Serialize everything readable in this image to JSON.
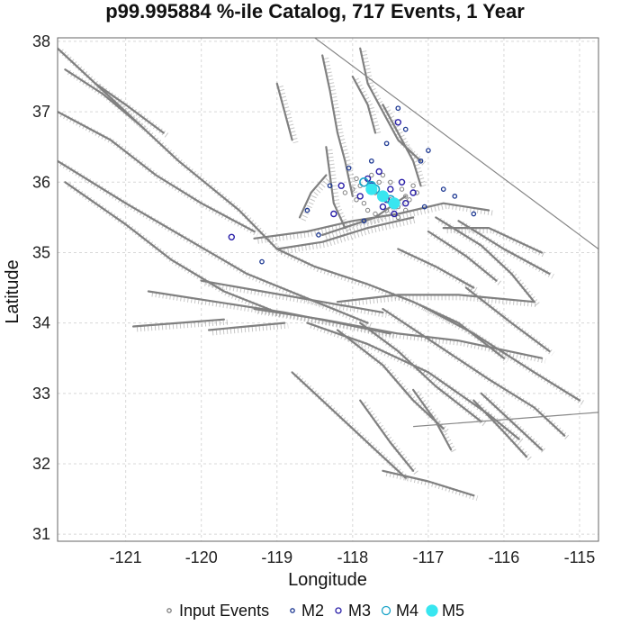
{
  "chart_data": {
    "type": "scatter",
    "title": "p99.995884 %-ile Catalog, 717 Events, 1 Year",
    "xlabel": "Longitude",
    "ylabel": "Latitude",
    "xlim": [
      -121.9,
      -114.75
    ],
    "ylim": [
      30.9,
      38.05
    ],
    "xticks": [
      -121,
      -120,
      -119,
      -118,
      -117,
      -116,
      -115
    ],
    "yticks": [
      31,
      32,
      33,
      34,
      35,
      36,
      37,
      38
    ],
    "grid": true,
    "legend_position": "bottom",
    "colors": {
      "faults": "#808080",
      "frame": "#555555",
      "grid": "#d8d8d8",
      "input_events": "#808080",
      "m2": "#1f3a93",
      "m3": "#2a1fa8",
      "m4": "#1aa3c8",
      "m5": "#38e6f0"
    },
    "legend": [
      {
        "label": "Input Events",
        "color": "#808080",
        "filled": false
      },
      {
        "label": "M2",
        "color": "#1f3a93",
        "filled": false
      },
      {
        "label": "M3",
        "color": "#2a1fa8",
        "filled": false
      },
      {
        "label": "M4",
        "color": "#1aa3c8",
        "filled": false
      },
      {
        "label": "M5",
        "color": "#38e6f0",
        "filled": true
      }
    ],
    "region_polygon": [
      [
        -118.5,
        38.05
      ],
      [
        -114.75,
        35.05
      ],
      [
        -114.75,
        32.73
      ],
      [
        -117.2,
        32.53
      ]
    ],
    "faults": [
      [
        [
          -121.9,
          37.9
        ],
        [
          -121.0,
          37.0
        ],
        [
          -120.3,
          36.3
        ],
        [
          -119.5,
          35.6
        ],
        [
          -119.0,
          35.05
        ],
        [
          -118.5,
          34.8
        ],
        [
          -117.8,
          34.55
        ],
        [
          -117.2,
          34.3
        ],
        [
          -116.6,
          34.0
        ],
        [
          -116.0,
          33.5
        ]
      ],
      [
        [
          -121.9,
          37.0
        ],
        [
          -121.2,
          36.6
        ],
        [
          -120.6,
          36.1
        ],
        [
          -120.0,
          35.7
        ],
        [
          -119.3,
          35.3
        ]
      ],
      [
        [
          -121.9,
          36.3
        ],
        [
          -121.0,
          35.7
        ],
        [
          -120.2,
          35.2
        ],
        [
          -119.4,
          34.7
        ],
        [
          -118.6,
          34.35
        ],
        [
          -117.8,
          34.0
        ]
      ],
      [
        [
          -121.8,
          36.0
        ],
        [
          -121.0,
          35.4
        ],
        [
          -120.4,
          34.9
        ],
        [
          -119.7,
          34.45
        ],
        [
          -119.0,
          34.15
        ]
      ],
      [
        [
          -120.7,
          34.45
        ],
        [
          -119.8,
          34.3
        ],
        [
          -118.9,
          34.15
        ],
        [
          -118.2,
          34.0
        ],
        [
          -117.5,
          33.85
        ]
      ],
      [
        [
          -120.0,
          34.6
        ],
        [
          -119.2,
          34.45
        ],
        [
          -118.4,
          34.3
        ],
        [
          -117.6,
          34.15
        ]
      ],
      [
        [
          -119.3,
          34.2
        ],
        [
          -118.4,
          34.05
        ],
        [
          -117.4,
          33.85
        ],
        [
          -116.6,
          33.75
        ],
        [
          -115.5,
          33.5
        ]
      ],
      [
        [
          -118.6,
          34.0
        ],
        [
          -117.8,
          33.7
        ],
        [
          -117.0,
          33.3
        ],
        [
          -116.2,
          32.7
        ],
        [
          -115.8,
          32.35
        ]
      ],
      [
        [
          -118.2,
          33.9
        ],
        [
          -117.6,
          33.4
        ],
        [
          -117.2,
          32.9
        ],
        [
          -116.8,
          32.5
        ]
      ],
      [
        [
          -117.9,
          34.0
        ],
        [
          -117.4,
          33.6
        ],
        [
          -116.9,
          33.1
        ],
        [
          -116.3,
          32.6
        ]
      ],
      [
        [
          -117.6,
          34.2
        ],
        [
          -116.9,
          33.7
        ],
        [
          -116.2,
          33.2
        ],
        [
          -115.6,
          32.8
        ],
        [
          -115.2,
          32.4
        ]
      ],
      [
        [
          -117.1,
          34.25
        ],
        [
          -116.4,
          33.85
        ],
        [
          -115.6,
          33.3
        ],
        [
          -115.0,
          32.9
        ]
      ],
      [
        [
          -116.5,
          34.5
        ],
        [
          -115.9,
          34.0
        ],
        [
          -115.4,
          33.6
        ]
      ],
      [
        [
          -119.3,
          35.2
        ],
        [
          -118.6,
          35.3
        ],
        [
          -118.0,
          35.45
        ],
        [
          -117.4,
          35.55
        ],
        [
          -116.8,
          35.7
        ],
        [
          -116.2,
          35.6
        ]
      ],
      [
        [
          -119.0,
          35.05
        ],
        [
          -118.4,
          35.15
        ],
        [
          -117.8,
          35.35
        ],
        [
          -117.2,
          35.5
        ]
      ],
      [
        [
          -118.4,
          35.25
        ],
        [
          -117.7,
          35.5
        ],
        [
          -117.3,
          35.8
        ]
      ],
      [
        [
          -117.9,
          37.9
        ],
        [
          -117.8,
          37.4
        ],
        [
          -117.6,
          37.0
        ],
        [
          -117.4,
          36.6
        ],
        [
          -117.1,
          36.3
        ]
      ],
      [
        [
          -118.4,
          37.8
        ],
        [
          -118.3,
          37.3
        ],
        [
          -118.2,
          36.7
        ],
        [
          -118.1,
          36.3
        ],
        [
          -118.0,
          35.8
        ]
      ],
      [
        [
          -118.0,
          37.5
        ],
        [
          -117.8,
          37.1
        ],
        [
          -117.7,
          36.7
        ]
      ],
      [
        [
          -117.6,
          37.1
        ],
        [
          -117.4,
          36.7
        ],
        [
          -117.2,
          36.3
        ],
        [
          -117.1,
          35.95
        ]
      ],
      [
        [
          -118.35,
          36.5
        ],
        [
          -118.3,
          36.1
        ],
        [
          -118.25,
          35.7
        ],
        [
          -118.1,
          35.35
        ]
      ],
      [
        [
          -118.7,
          35.5
        ],
        [
          -118.55,
          35.85
        ],
        [
          -118.35,
          36.1
        ]
      ],
      [
        [
          -116.9,
          35.5
        ],
        [
          -116.3,
          35.1
        ],
        [
          -115.9,
          34.7
        ],
        [
          -115.6,
          34.3
        ]
      ],
      [
        [
          -117.0,
          35.3
        ],
        [
          -116.5,
          34.95
        ],
        [
          -116.1,
          34.6
        ]
      ],
      [
        [
          -116.6,
          35.45
        ],
        [
          -116.0,
          35.05
        ],
        [
          -115.4,
          34.7
        ]
      ],
      [
        [
          -117.4,
          35.05
        ],
        [
          -116.9,
          34.8
        ],
        [
          -116.4,
          34.5
        ]
      ],
      [
        [
          -116.8,
          35.35
        ],
        [
          -116.2,
          35.35
        ],
        [
          -115.5,
          35.0
        ]
      ],
      [
        [
          -118.2,
          34.3
        ],
        [
          -117.4,
          34.4
        ],
        [
          -116.6,
          34.4
        ],
        [
          -115.6,
          34.3
        ]
      ],
      [
        [
          -120.9,
          33.95
        ],
        [
          -120.3,
          34.0
        ],
        [
          -119.7,
          34.05
        ]
      ],
      [
        [
          -119.9,
          33.9
        ],
        [
          -119.4,
          33.95
        ],
        [
          -118.9,
          34.0
        ]
      ],
      [
        [
          -118.8,
          33.3
        ],
        [
          -118.2,
          32.7
        ],
        [
          -117.7,
          32.2
        ],
        [
          -117.3,
          31.8
        ]
      ],
      [
        [
          -117.9,
          32.9
        ],
        [
          -117.5,
          32.3
        ],
        [
          -117.2,
          31.9
        ]
      ],
      [
        [
          -116.4,
          32.9
        ],
        [
          -116.0,
          32.45
        ],
        [
          -115.7,
          32.1
        ]
      ],
      [
        [
          -117.6,
          31.9
        ],
        [
          -117.0,
          31.75
        ],
        [
          -116.4,
          31.55
        ]
      ],
      [
        [
          -117.2,
          33.05
        ],
        [
          -116.9,
          32.6
        ],
        [
          -116.7,
          32.2
        ]
      ],
      [
        [
          -121.4,
          37.4
        ],
        [
          -121.0,
          37.1
        ],
        [
          -120.5,
          36.7
        ]
      ],
      [
        [
          -121.8,
          37.6
        ],
        [
          -121.3,
          37.25
        ],
        [
          -120.8,
          36.8
        ]
      ],
      [
        [
          -119.0,
          37.4
        ],
        [
          -118.9,
          37.0
        ],
        [
          -118.8,
          36.6
        ]
      ],
      [
        [
          -116.3,
          33.0
        ],
        [
          -115.9,
          32.6
        ],
        [
          -115.5,
          32.2
        ]
      ]
    ],
    "series": [
      {
        "name": "Input Events",
        "points": [
          [
            -117.95,
            36.05
          ],
          [
            -117.9,
            35.95
          ],
          [
            -117.7,
            35.85
          ],
          [
            -117.6,
            35.8
          ],
          [
            -117.5,
            35.75
          ],
          [
            -117.45,
            35.7
          ],
          [
            -117.55,
            35.6
          ],
          [
            -117.4,
            35.65
          ],
          [
            -117.35,
            35.9
          ],
          [
            -117.3,
            35.8
          ],
          [
            -117.75,
            36.1
          ],
          [
            -117.85,
            35.7
          ],
          [
            -117.65,
            36.0
          ],
          [
            -117.25,
            35.75
          ],
          [
            -117.8,
            35.6
          ],
          [
            -118.0,
            35.9
          ],
          [
            -117.5,
            36.0
          ],
          [
            -117.2,
            35.95
          ],
          [
            -117.7,
            35.55
          ],
          [
            -118.1,
            35.85
          ],
          [
            -117.6,
            36.1
          ],
          [
            -117.4,
            35.5
          ],
          [
            -117.15,
            35.85
          ],
          [
            -117.95,
            35.75
          ],
          [
            -117.3,
            35.6
          ]
        ]
      },
      {
        "name": "M2",
        "points": [
          [
            -117.4,
            37.05
          ],
          [
            -117.0,
            36.45
          ],
          [
            -117.3,
            36.75
          ],
          [
            -118.6,
            35.6
          ],
          [
            -118.45,
            35.25
          ],
          [
            -116.4,
            35.55
          ],
          [
            -119.2,
            34.87
          ],
          [
            -116.65,
            35.8
          ],
          [
            -117.55,
            36.55
          ],
          [
            -118.05,
            36.2
          ],
          [
            -117.05,
            35.65
          ],
          [
            -117.85,
            35.45
          ],
          [
            -117.1,
            36.3
          ],
          [
            -117.75,
            36.3
          ],
          [
            -118.3,
            35.95
          ],
          [
            -116.8,
            35.9
          ]
        ]
      },
      {
        "name": "M3",
        "points": [
          [
            -119.6,
            35.22
          ],
          [
            -117.4,
            36.85
          ],
          [
            -118.25,
            35.55
          ],
          [
            -117.65,
            36.15
          ],
          [
            -117.5,
            35.9
          ],
          [
            -117.3,
            35.7
          ],
          [
            -117.9,
            35.8
          ],
          [
            -117.6,
            35.65
          ],
          [
            -117.45,
            35.55
          ],
          [
            -118.15,
            35.95
          ],
          [
            -117.2,
            35.85
          ],
          [
            -117.75,
            35.95
          ],
          [
            -117.35,
            36.0
          ],
          [
            -117.8,
            36.05
          ],
          [
            -117.55,
            35.75
          ]
        ]
      },
      {
        "name": "M4",
        "points": [
          [
            -117.75,
            35.95
          ],
          [
            -117.6,
            35.8
          ],
          [
            -117.45,
            35.68
          ],
          [
            -117.85,
            36.0
          ],
          [
            -117.5,
            35.75
          ],
          [
            -117.7,
            35.9
          ]
        ]
      },
      {
        "name": "M5",
        "points": [
          [
            -117.75,
            35.9
          ],
          [
            -117.6,
            35.8
          ],
          [
            -117.45,
            35.7
          ]
        ]
      }
    ]
  }
}
